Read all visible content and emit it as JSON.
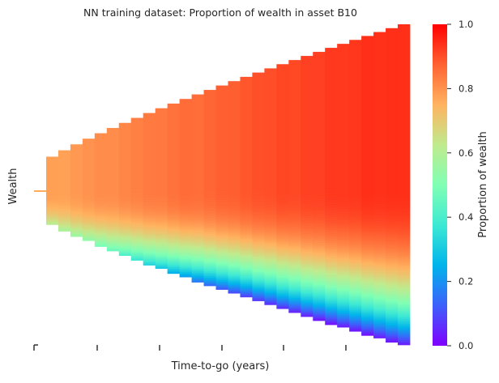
{
  "chart_data": {
    "type": "heatmap",
    "title": "NN training dataset: Proportion of wealth in asset B10",
    "xlabel": "Time-to-go (years)",
    "ylabel": "Wealth",
    "x_tick_labels": [
      "",
      "",
      "",
      "",
      "",
      ""
    ],
    "y_tick_labels": [],
    "colorbar": {
      "label": "Proportion of wealth",
      "colormap": "rainbow",
      "range": [
        0.0,
        1.0
      ],
      "ticks": [
        0.0,
        0.2,
        0.4,
        0.6,
        0.8,
        1.0
      ],
      "tick_labels": [
        "0.0",
        "0.2",
        "0.4",
        "0.6",
        "0.8",
        "1.0"
      ],
      "position": "right"
    },
    "n_time_columns": 30,
    "column_proportion_range": [
      [
        0.78,
        0.6
      ],
      [
        0.78,
        0.58
      ],
      [
        0.79,
        0.55
      ],
      [
        0.8,
        0.52
      ],
      [
        0.81,
        0.48
      ],
      [
        0.81,
        0.45
      ],
      [
        0.82,
        0.4
      ],
      [
        0.83,
        0.36
      ],
      [
        0.84,
        0.32
      ],
      [
        0.84,
        0.28
      ],
      [
        0.85,
        0.24
      ],
      [
        0.86,
        0.2
      ],
      [
        0.86,
        0.16
      ],
      [
        0.87,
        0.13
      ],
      [
        0.88,
        0.1
      ],
      [
        0.88,
        0.08
      ],
      [
        0.89,
        0.06
      ],
      [
        0.9,
        0.05
      ],
      [
        0.9,
        0.04
      ],
      [
        0.91,
        0.04
      ],
      [
        0.91,
        0.03
      ],
      [
        0.92,
        0.03
      ],
      [
        0.92,
        0.02
      ],
      [
        0.93,
        0.02
      ],
      [
        0.93,
        0.02
      ],
      [
        0.93,
        0.02
      ],
      [
        0.94,
        0.02
      ],
      [
        0.94,
        0.02
      ],
      [
        0.94,
        0.02
      ],
      [
        0.94,
        0.02
      ]
    ],
    "grid": false,
    "colors": {
      "text": "#262626",
      "tick": "#262626",
      "background": "#ffffff"
    }
  }
}
